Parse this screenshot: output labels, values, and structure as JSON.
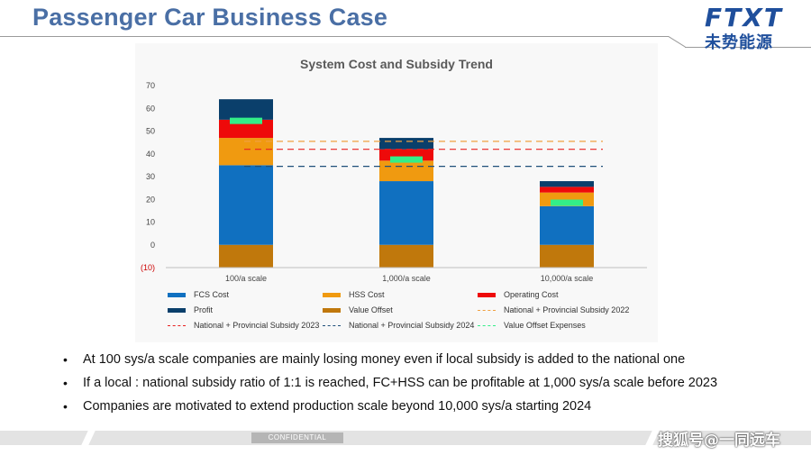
{
  "page": {
    "title": "Passenger Car Business Case",
    "logo_mark": "FTXT",
    "logo_sub": "未势能源",
    "footer_label": "CONFIDENTIAL",
    "watermark": "搜狐号@一同远车"
  },
  "bullets": [
    "At 100 sys/a scale companies are mainly losing money even if local subsidy is added to the national one",
    "If a local : national subsidy ratio of 1:1 is reached, FC+HSS can be profitable at 1,000 sys/a scale before 2023",
    "Companies are motivated to extend production scale beyond 10,000 sys/a starting 2024"
  ],
  "chart_data": {
    "type": "bar",
    "title": "System Cost and Subsidy Trend",
    "categories": [
      "100/a scale",
      "1,000/a scale",
      "10,000/a scale"
    ],
    "ylim": [
      -10,
      70
    ],
    "yticks": [
      -10,
      0,
      10,
      20,
      30,
      40,
      50,
      60,
      70
    ],
    "ytick_labels": [
      "(10)",
      "0",
      "10",
      "20",
      "30",
      "40",
      "50",
      "60",
      "70"
    ],
    "series": [
      {
        "name": "Value Offset",
        "color": "#c0780c",
        "values": [
          -10,
          -10,
          -10
        ]
      },
      {
        "name": "FCS Cost",
        "color": "#1070c0",
        "values": [
          35,
          28,
          17
        ]
      },
      {
        "name": "HSS Cost",
        "color": "#f09a10",
        "values": [
          12,
          9,
          6
        ]
      },
      {
        "name": "Operating Cost",
        "color": "#ee0a0a",
        "values": [
          8,
          5,
          2.5
        ]
      },
      {
        "name": "Profit",
        "color": "#0a3f6b",
        "values": [
          9,
          5,
          2.5
        ]
      }
    ],
    "value_offset_expenses": {
      "name": "Value Offset Expenses",
      "color": "#33ee88",
      "values": [
        54.5,
        37.5,
        18.5
      ]
    },
    "subsidy_lines": [
      {
        "name": "National + Provincial Subsidy 2022",
        "color": "#f0a040",
        "value": 45.5
      },
      {
        "name": "National + Provincial Subsidy 2023",
        "color": "#e82020",
        "value": 42
      },
      {
        "name": "National + Provincial Subsidy 2024",
        "color": "#1f4f7a",
        "value": 34.5
      }
    ],
    "legend": [
      {
        "label": "FCS Cost",
        "kind": "rect",
        "color": "#1070c0"
      },
      {
        "label": "HSS Cost",
        "kind": "rect",
        "color": "#f09a10"
      },
      {
        "label": "Operating Cost",
        "kind": "rect",
        "color": "#ee0a0a"
      },
      {
        "label": "Profit",
        "kind": "rect",
        "color": "#0a3f6b"
      },
      {
        "label": "Value Offset",
        "kind": "rect",
        "color": "#c0780c"
      },
      {
        "label": "National + Provincial Subsidy 2022",
        "kind": "dash",
        "color": "#f0a040"
      },
      {
        "label": "National + Provincial Subsidy 2023",
        "kind": "dash",
        "color": "#e82020"
      },
      {
        "label": "National + Provincial Subsidy 2024",
        "kind": "dash",
        "color": "#1f4f7a"
      },
      {
        "label": "Value Offset Expenses",
        "kind": "dash",
        "color": "#33ee88"
      }
    ]
  }
}
